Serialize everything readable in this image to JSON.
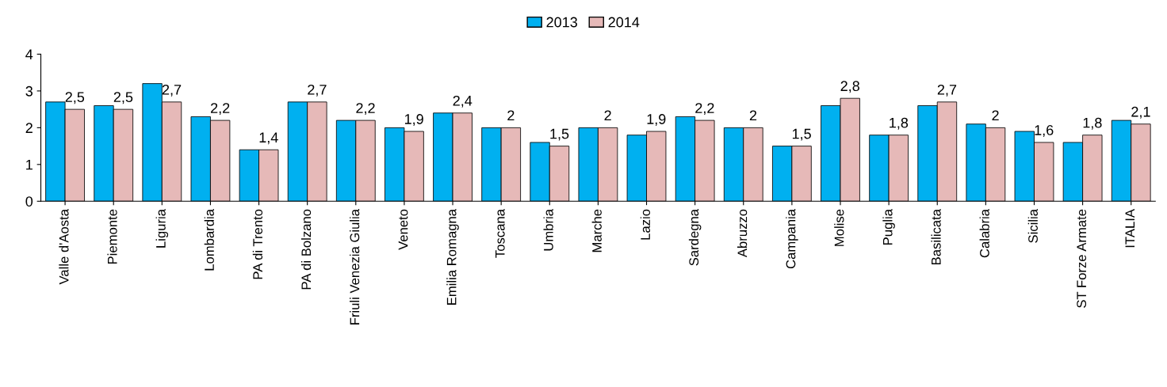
{
  "chart_data": {
    "type": "bar",
    "categories": [
      "Valle d'Aosta",
      "Piemonte",
      "Liguria",
      "Lombardia",
      "PA di Trento",
      "PA di Bolzano",
      "Friuli Venezia Giulia",
      "Veneto",
      "Emilia Romagna",
      "Toscana",
      "Umbria",
      "Marche",
      "Lazio",
      "Sardegna",
      "Abruzzo",
      "Campania",
      "Molise",
      "Puglia",
      "Basilicata",
      "Calabria",
      "Sicilia",
      "ST Forze Armate",
      "ITALIA"
    ],
    "series": [
      {
        "name": "2013",
        "color": "#00b0f0",
        "values": [
          2.7,
          2.6,
          3.2,
          2.3,
          1.4,
          2.7,
          2.2,
          2.0,
          2.4,
          2.0,
          1.6,
          2.0,
          1.8,
          2.3,
          2.0,
          1.5,
          2.6,
          1.8,
          2.6,
          2.1,
          1.9,
          1.6,
          2.2
        ]
      },
      {
        "name": "2014",
        "color": "#e6b9b8",
        "values": [
          2.5,
          2.5,
          2.7,
          2.2,
          1.4,
          2.7,
          2.2,
          1.9,
          2.4,
          2,
          1.5,
          2,
          1.9,
          2.2,
          2,
          1.5,
          2.8,
          1.8,
          2.7,
          2,
          1.6,
          1.8,
          2.1
        ],
        "value_labels": [
          "2,5",
          "2,5",
          "2,7",
          "2,2",
          "1,4",
          "2,7",
          "2,2",
          "1,9",
          "2,4",
          "2",
          "1,5",
          "2",
          "1,9",
          "2,2",
          "2",
          "1,5",
          "2,8",
          "1,8",
          "2,7",
          "2",
          "1,6",
          "1,8",
          "2,1"
        ]
      }
    ],
    "ylim": [
      0,
      4
    ],
    "yticks": [
      0,
      1,
      2,
      3,
      4
    ],
    "grid": false,
    "legend": "top"
  }
}
